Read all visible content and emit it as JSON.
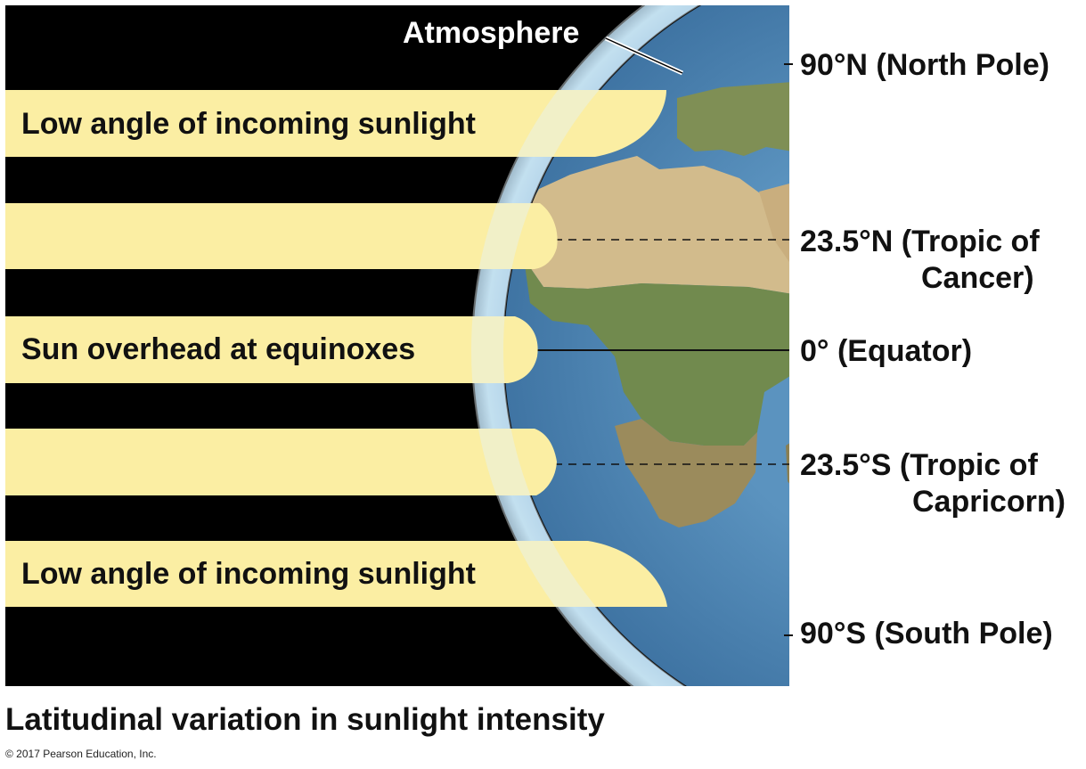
{
  "atmosphere_label": "Atmosphere",
  "beams": [
    {
      "label": "Low angle of incoming sunlight"
    },
    {
      "label": ""
    },
    {
      "label": "Sun overhead at equinoxes"
    },
    {
      "label": ""
    },
    {
      "label": "Low angle of incoming sunlight"
    }
  ],
  "latitudes": {
    "north_pole": "90°N (North Pole)",
    "tropic_cancer_line1": "23.5°N (Tropic of",
    "tropic_cancer_line2": "Cancer)",
    "equator": "0° (Equator)",
    "tropic_capricorn_line1": "23.5°S (Tropic of",
    "tropic_capricorn_line2": "Capricorn)",
    "south_pole": "90°S (South Pole)"
  },
  "caption": "Latitudinal variation in sunlight intensity",
  "copyright": "© 2017 Pearson Education, Inc.",
  "colors": {
    "space": "#000000",
    "sunlight": "#fbeea3",
    "ocean": "#4f86b3",
    "land": "#b9a171",
    "atmosphere": "#c9e6f2"
  }
}
